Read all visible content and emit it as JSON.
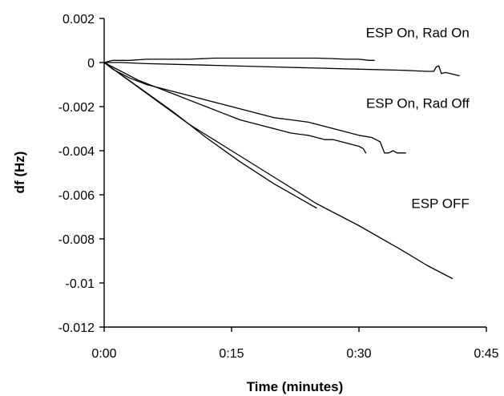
{
  "chart_data": {
    "type": "line",
    "title": "",
    "xlabel": "Time (minutes)",
    "ylabel": "df (Hz)",
    "x_unit": "minutes",
    "xlim": [
      0,
      45
    ],
    "ylim": [
      -0.012,
      0.002
    ],
    "x_ticks": [
      0,
      15,
      30,
      45
    ],
    "x_tick_labels": [
      "0:00",
      "0:15",
      "0:30",
      "0:45"
    ],
    "y_ticks": [
      0.002,
      0,
      -0.002,
      -0.004,
      -0.006,
      -0.008,
      -0.01,
      -0.012
    ],
    "y_tick_labels": [
      "0.002",
      "0",
      "-0.002",
      "-0.004",
      "-0.006",
      "-0.008",
      "-0.01",
      "-0.012"
    ],
    "grid": false,
    "legend": "none",
    "annotations": [
      {
        "text": "ESP On, Rad On",
        "x": 43,
        "y": 0.00115
      },
      {
        "text": "ESP On, Rad Off",
        "x": 43,
        "y": -0.00205
      },
      {
        "text": "ESP OFF",
        "x": 43,
        "y": -0.0066
      }
    ],
    "series": [
      {
        "x": [
          0,
          1,
          3,
          5,
          8,
          10,
          13,
          16,
          19,
          22,
          25,
          27,
          28.5,
          29.5,
          30,
          31.2,
          31.8
        ],
        "y": [
          0,
          0.0001,
          0.0001,
          0.00015,
          0.00015,
          0.00015,
          0.0002,
          0.0002,
          0.0002,
          0.0002,
          0.0002,
          0.00018,
          0.00015,
          0.00015,
          0.00015,
          0.0001,
          0.0001
        ]
      },
      {
        "x": [
          0,
          2,
          5,
          10,
          15,
          20,
          25,
          30,
          35,
          38,
          38.8,
          39.1,
          39.4,
          39.7,
          40.2,
          41.8
        ],
        "y": [
          0,
          0,
          -5e-05,
          -0.0001,
          -0.00015,
          -0.0002,
          -0.00025,
          -0.0003,
          -0.00035,
          -0.0004,
          -0.0004,
          -0.0002,
          -0.00015,
          -0.0005,
          -0.00045,
          -0.0006
        ]
      },
      {
        "x": [
          0,
          1,
          3,
          5,
          8,
          10,
          12,
          14,
          15,
          17,
          19,
          20,
          22,
          24,
          25,
          26,
          27,
          28,
          29,
          30,
          31.5,
          32,
          32.5,
          33,
          33.5,
          34,
          34.5,
          35.5
        ],
        "y": [
          0,
          -0.0003,
          -0.0007,
          -0.001,
          -0.0013,
          -0.0015,
          -0.0017,
          -0.0019,
          -0.002,
          -0.0022,
          -0.0024,
          -0.0025,
          -0.0026,
          -0.0027,
          -0.0028,
          -0.0029,
          -0.003,
          -0.0031,
          -0.0032,
          -0.0033,
          -0.0034,
          -0.0035,
          -0.0036,
          -0.0041,
          -0.0041,
          -0.004,
          -0.0041,
          -0.0041
        ]
      },
      {
        "x": [
          0,
          2,
          4,
          6,
          8,
          10,
          12,
          14,
          16,
          18,
          20,
          22,
          24,
          26,
          27,
          28,
          29,
          30,
          30.5,
          30.8
        ],
        "y": [
          0,
          -0.0004,
          -0.0008,
          -0.0011,
          -0.0014,
          -0.0017,
          -0.002,
          -0.0023,
          -0.0026,
          -0.0028,
          -0.003,
          -0.0032,
          -0.0033,
          -0.0035,
          -0.0035,
          -0.0036,
          -0.0037,
          -0.0038,
          -0.0039,
          -0.0041
        ]
      },
      {
        "x": [
          0,
          5,
          10,
          15,
          20,
          25,
          30,
          35,
          38,
          41
        ],
        "y": [
          0,
          -0.0014,
          -0.0028,
          -0.004,
          -0.0052,
          -0.0064,
          -0.0074,
          -0.0085,
          -0.0092,
          -0.0098
        ]
      },
      {
        "x": [
          0,
          4,
          8,
          12,
          16,
          20,
          25
        ],
        "y": [
          0,
          -0.0011,
          -0.0022,
          -0.0034,
          -0.0045,
          -0.0055,
          -0.0066
        ]
      }
    ]
  }
}
